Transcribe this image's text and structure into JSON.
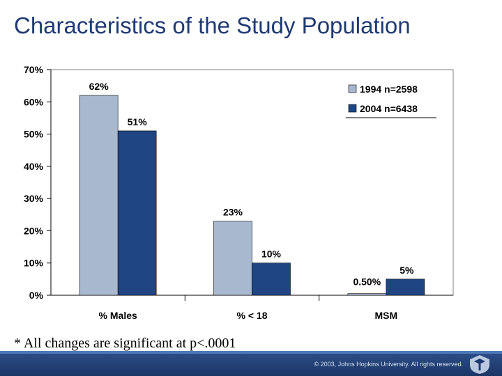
{
  "slide": {
    "title": "Characteristics of the Study Population",
    "footnote": "* All changes are significant at p<.0001",
    "copyright": "© 2003, Johns Hopkins University. All rights reserved."
  },
  "colors": {
    "series_1994": "#a8b8cf",
    "series_2004": "#1f4683",
    "footer": "#1f3a73"
  },
  "chart_data": {
    "type": "bar",
    "title": "",
    "xlabel": "",
    "ylabel": "",
    "ylim": [
      0,
      70
    ],
    "yticks": [
      "0%",
      "10%",
      "20%",
      "30%",
      "40%",
      "50%",
      "60%",
      "70%"
    ],
    "categories": [
      "% Males",
      "% < 18",
      "MSM"
    ],
    "series": [
      {
        "name": "1994 n=2598",
        "values": [
          62,
          23,
          0.5
        ],
        "labels": [
          "62%",
          "23%",
          "0.50%"
        ],
        "color": "#a8b8cf"
      },
      {
        "name": "2004 n=6438",
        "values": [
          51,
          10,
          5
        ],
        "labels": [
          "51%",
          "10%",
          "5%"
        ],
        "color": "#1f4683"
      }
    ],
    "legend_position": "top-right",
    "grid": false
  }
}
